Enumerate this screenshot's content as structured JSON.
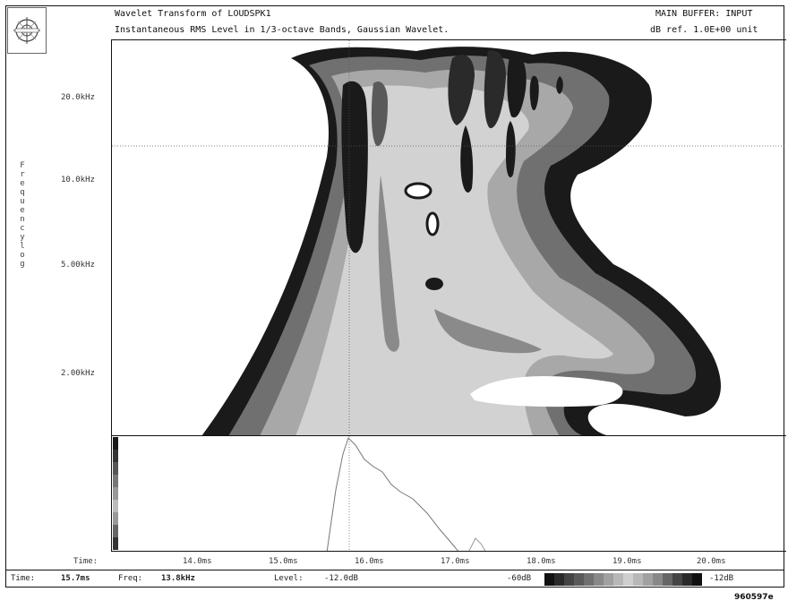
{
  "header": {
    "title": "Wavelet Transform of  LOUDSPK1",
    "subtitle": "Instantaneous RMS Level in 1/3-octave Bands, Gaussian Wavelet.",
    "buffer": "MAIN BUFFER: INPUT",
    "reference": "dB ref. 1.0E+00 unit"
  },
  "axis": {
    "ylabel": "Frequency log",
    "xlabel": "Time:",
    "yticks": [
      "20.0kHz",
      "10.0kHz",
      "5.00kHz",
      "2.00kHz"
    ],
    "xticks": [
      "14.0ms",
      "15.0ms",
      "16.0ms",
      "17.0ms",
      "18.0ms",
      "19.0ms",
      "20.0ms"
    ]
  },
  "status": {
    "time_label": "Time:",
    "time_value": "15.7ms",
    "freq_label": "Freq:",
    "freq_value": "13.8kHz",
    "level_label": "Level:",
    "level_value": "-12.0dB",
    "scale_min": "-60dB",
    "scale_max": "-12dB"
  },
  "footer_code": "960597e",
  "colors": {
    "band_dark": "#1c1c1c",
    "band_mid": "#6e6e6e",
    "band_light": "#c8c8c8"
  }
}
